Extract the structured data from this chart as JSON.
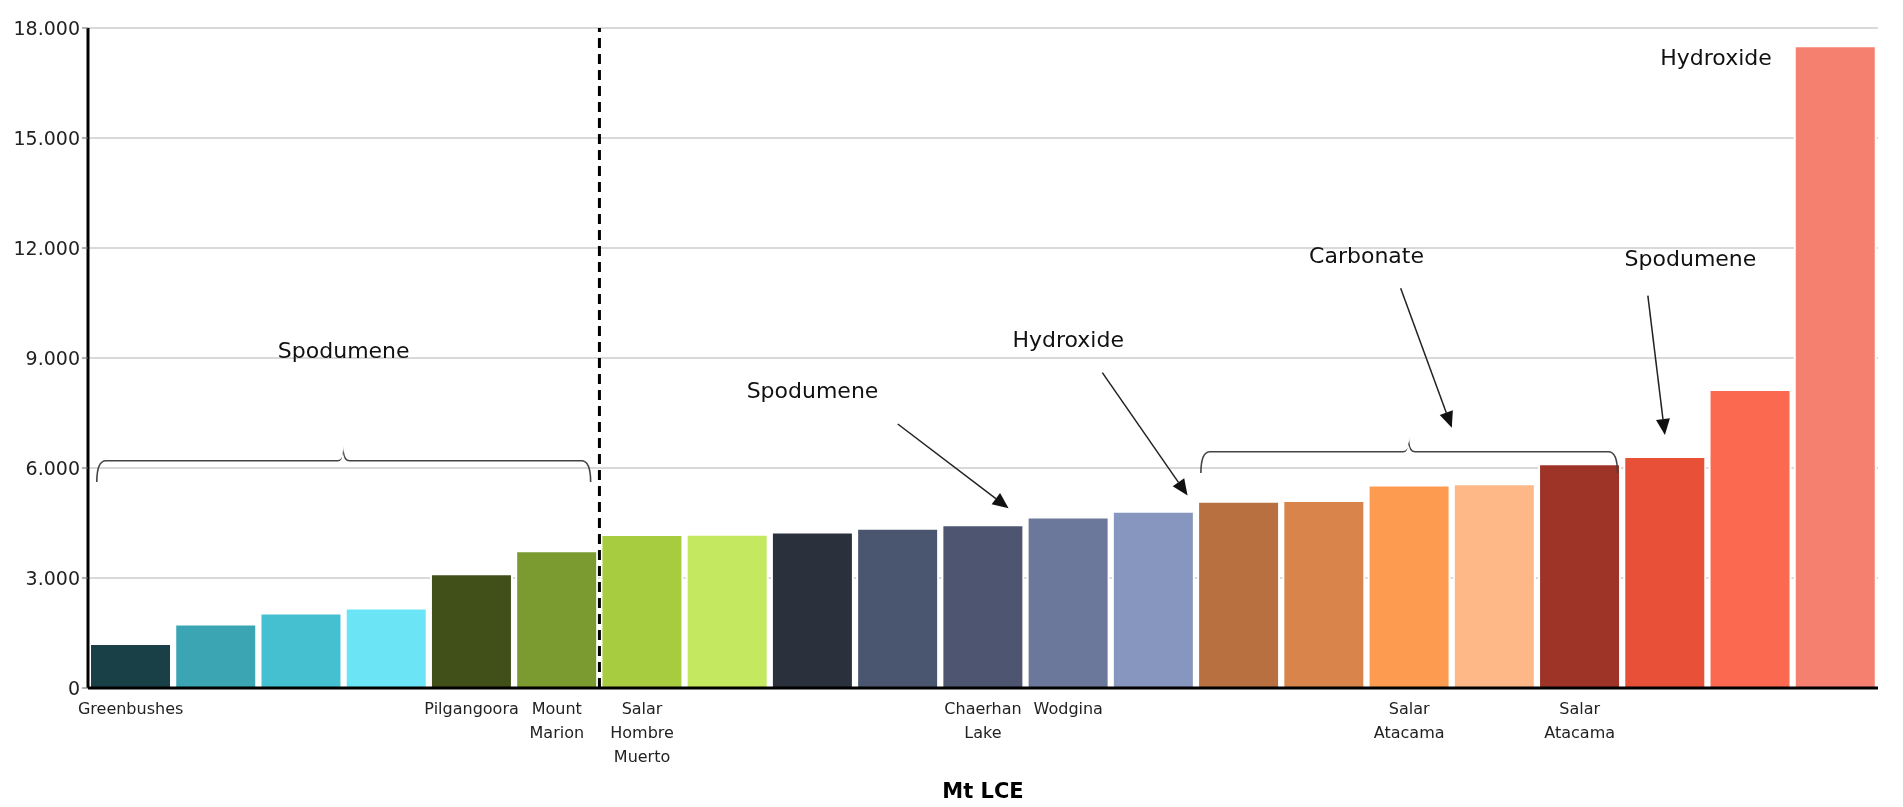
{
  "chart_data": {
    "type": "bar",
    "categories": [
      "Greenbushes",
      null,
      null,
      null,
      "Pilgangoora",
      "Mount Marion",
      "Salar Hombre Muerto",
      null,
      null,
      null,
      "Chaerhan Lake",
      "Wodgina",
      null,
      null,
      null,
      "Salar Atacama",
      null,
      "Salar Atacama",
      null,
      null,
      null
    ],
    "values": [
      1200,
      1730,
      2030,
      2170,
      3100,
      3730,
      4170,
      4180,
      4240,
      4340,
      4440,
      4650,
      4810,
      5080,
      5100,
      5520,
      5560,
      6100,
      6300,
      8130,
      17500
    ],
    "colors": [
      "#1a4047",
      "#3ba5b4",
      "#45c0d0",
      "#6be5f5",
      "#405018",
      "#7b9a30",
      "#a8cc40",
      "#c4e860",
      "#2a303c",
      "#4a5670",
      "#4d5570",
      "#6b789c",
      "#8796be",
      "#b87040",
      "#d8844a",
      "#fd9c50",
      "#feb888",
      "#9e3428",
      "#e85038",
      "#fb6a50",
      "#f58070"
    ],
    "xlabel": "Mt LCE",
    "ylim": [
      0,
      18000
    ],
    "yticks": [
      {
        "value": 0,
        "label": "0"
      },
      {
        "value": 3000,
        "label": "3.000"
      },
      {
        "value": 6000,
        "label": "6.000"
      },
      {
        "value": 9000,
        "label": "9.000"
      },
      {
        "value": 12000,
        "label": "12.000"
      },
      {
        "value": 15000,
        "label": "15.000"
      },
      {
        "value": 18000,
        "label": "18.000"
      }
    ],
    "grid": "y",
    "legend": false,
    "ref_lines": [
      {
        "axis": "x",
        "value": "Mount Marion",
        "color": "#000000",
        "line_style": "dashed"
      }
    ],
    "annotations": [
      "Spodumene",
      "Spodumene",
      "Hydroxide",
      "Carbonate",
      "Spodumene",
      "Hydroxide"
    ]
  }
}
